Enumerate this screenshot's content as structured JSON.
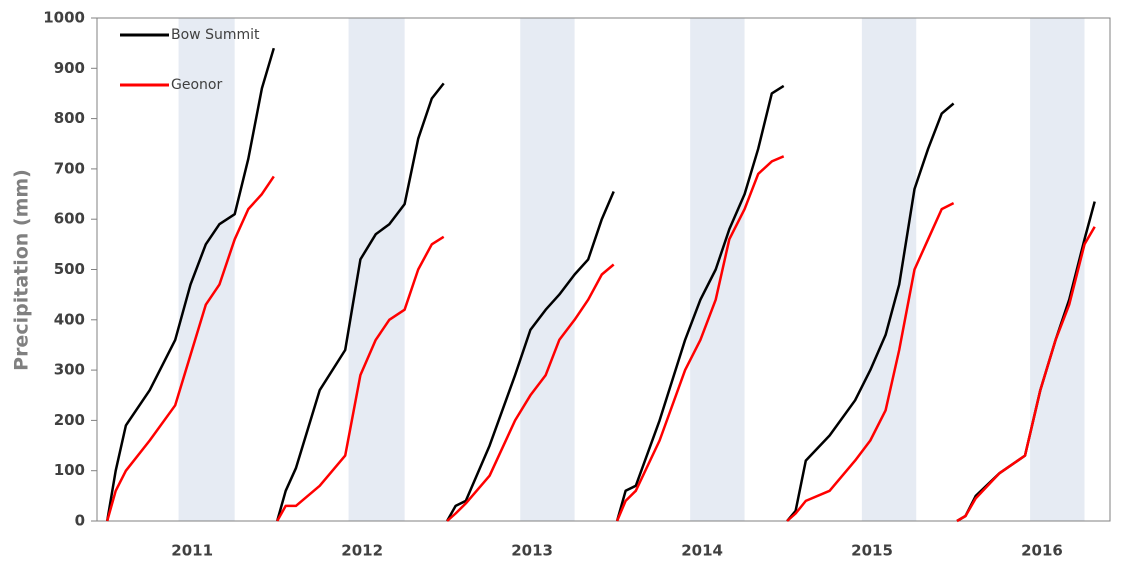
{
  "chart_data": {
    "type": "line",
    "y_label": "Precipitation (mm)",
    "x": [
      2010.75,
      2010.8,
      2010.86,
      2011.0,
      2011.15,
      2011.24,
      2011.33,
      2011.41,
      2011.5,
      2011.58,
      2011.66,
      2011.73,
      2011.74,
      2011.75,
      2011.8,
      2011.86,
      2012.0,
      2012.15,
      2012.24,
      2012.33,
      2012.41,
      2012.5,
      2012.58,
      2012.66,
      2012.73,
      2012.74,
      2012.75,
      2012.8,
      2012.86,
      2013.0,
      2013.15,
      2013.24,
      2013.33,
      2013.41,
      2013.5,
      2013.58,
      2013.66,
      2013.73,
      2013.74,
      2013.75,
      2013.8,
      2013.86,
      2014.0,
      2014.15,
      2014.24,
      2014.33,
      2014.41,
      2014.5,
      2014.58,
      2014.66,
      2014.73,
      2014.74,
      2014.75,
      2014.8,
      2014.86,
      2015.0,
      2015.15,
      2015.24,
      2015.33,
      2015.41,
      2015.5,
      2015.58,
      2015.66,
      2015.73,
      2015.74,
      2015.75,
      2015.8,
      2015.86,
      2016.0,
      2016.15,
      2016.24,
      2016.33,
      2016.41,
      2016.5,
      2016.56
    ],
    "series": [
      {
        "name": "Bow Summit",
        "color": "#000000",
        "values": [
          0,
          100,
          190,
          260,
          360,
          470,
          550,
          590,
          610,
          720,
          860,
          940,
          null,
          0,
          60,
          105,
          260,
          340,
          520,
          570,
          590,
          630,
          760,
          840,
          870,
          null,
          0,
          30,
          40,
          150,
          290,
          380,
          420,
          450,
          490,
          520,
          600,
          655,
          null,
          0,
          60,
          70,
          200,
          360,
          440,
          500,
          580,
          650,
          740,
          850,
          865,
          null,
          0,
          20,
          120,
          170,
          240,
          300,
          370,
          470,
          660,
          740,
          810,
          830,
          null,
          0,
          10,
          50,
          95,
          130,
          260,
          360,
          440,
          560,
          635
        ]
      },
      {
        "name": "Geonor",
        "color": "#ff0000",
        "values": [
          0,
          60,
          100,
          160,
          230,
          330,
          430,
          470,
          560,
          620,
          650,
          685,
          null,
          0,
          30,
          30,
          70,
          130,
          290,
          360,
          400,
          420,
          500,
          550,
          565,
          null,
          0,
          15,
          35,
          90,
          200,
          250,
          290,
          360,
          400,
          440,
          490,
          510,
          null,
          0,
          40,
          60,
          160,
          300,
          360,
          440,
          560,
          620,
          690,
          715,
          725,
          null,
          0,
          15,
          40,
          60,
          120,
          160,
          220,
          340,
          500,
          560,
          620,
          632,
          null,
          0,
          10,
          45,
          95,
          130,
          260,
          360,
          430,
          550,
          585
        ]
      }
    ],
    "xlim": [
      2010.69,
      2016.65
    ],
    "xticks": [
      {
        "value": 2011.25,
        "label": "2011"
      },
      {
        "value": 2012.25,
        "label": "2012"
      },
      {
        "value": 2013.25,
        "label": "2013"
      },
      {
        "value": 2014.25,
        "label": "2014"
      },
      {
        "value": 2015.25,
        "label": "2015"
      },
      {
        "value": 2016.25,
        "label": "2016"
      }
    ],
    "ylim": [
      0,
      1000
    ],
    "yticks": [
      0,
      100,
      200,
      300,
      400,
      500,
      600,
      700,
      800,
      900,
      1000
    ],
    "shaded_bands": [
      [
        2011.17,
        2011.5
      ],
      [
        2012.17,
        2012.5
      ],
      [
        2013.18,
        2013.5
      ],
      [
        2014.18,
        2014.5
      ],
      [
        2015.19,
        2015.51
      ],
      [
        2016.18,
        2016.5
      ]
    ],
    "band_color": "#e6ebf3",
    "legend": "upper left"
  }
}
